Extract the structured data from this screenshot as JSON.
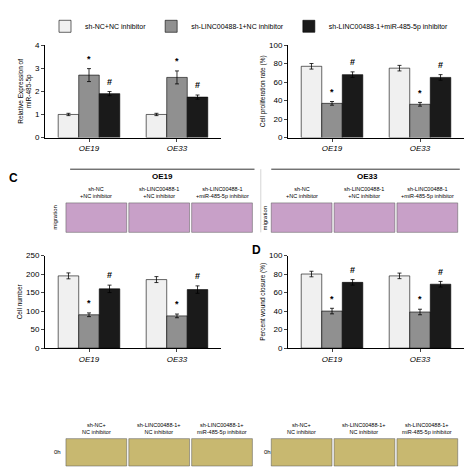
{
  "chart_data": [
    {
      "type": "bar",
      "ylabel": "Relative Expression of\nmiR-485-5p",
      "categories": [
        "OE19",
        "OE33"
      ],
      "series": [
        {
          "name": "sh-NC+NC inhibitor",
          "color": "#f0f0f0",
          "values": [
            1.0,
            1.0
          ],
          "errors": [
            0.05,
            0.05
          ]
        },
        {
          "name": "sh-LINC00488-1+NC inhibitor",
          "color": "#909090",
          "values": [
            2.7,
            2.6
          ],
          "errors": [
            0.28,
            0.28
          ]
        },
        {
          "name": "sh-LINC00488-1+miR-485-5p inhibitor",
          "color": "#1a1a1a",
          "values": [
            1.9,
            1.75
          ],
          "errors": [
            0.09,
            0.09
          ]
        }
      ],
      "ylim": [
        0,
        4
      ],
      "yticks": [
        0,
        1,
        2,
        3,
        4
      ],
      "grid": false,
      "legend": "top",
      "annotations": [
        {
          "text": "*",
          "category": "OE19",
          "series": "sh-LINC00488-1+NC inhibitor"
        },
        {
          "text": "*",
          "category": "OE33",
          "series": "sh-LINC00488-1+NC inhibitor"
        },
        {
          "text": "#",
          "category": "OE19",
          "series": "sh-LINC00488-1+miR-485-5p inhibitor"
        },
        {
          "text": "#",
          "category": "OE33",
          "series": "sh-LINC00488-1+miR-485-5p inhibitor"
        }
      ]
    },
    {
      "type": "bar",
      "ylabel": "Cell proliferation rate (%)",
      "categories": [
        "OE19",
        "OE33"
      ],
      "series": [
        {
          "name": "sh-NC+NC inhibitor",
          "color": "#f0f0f0",
          "values": [
            77,
            75
          ],
          "errors": [
            3,
            3
          ]
        },
        {
          "name": "sh-LINC00488-1+NC inhibitor",
          "color": "#909090",
          "values": [
            37,
            36
          ],
          "errors": [
            2,
            2
          ]
        },
        {
          "name": "sh-LINC00488-1+miR-485-5p inhibitor",
          "color": "#1a1a1a",
          "values": [
            68,
            65
          ],
          "errors": [
            3,
            3
          ]
        }
      ],
      "ylim": [
        0,
        100
      ],
      "yticks": [
        0,
        20,
        40,
        60,
        80,
        100
      ],
      "grid": false,
      "legend": "top",
      "annotations": [
        {
          "text": "*",
          "category": "OE19",
          "series": "sh-LINC00488-1+NC inhibitor"
        },
        {
          "text": "*",
          "category": "OE33",
          "series": "sh-LINC00488-1+NC inhibitor"
        },
        {
          "text": "#",
          "category": "OE19",
          "series": "sh-LINC00488-1+miR-485-5p inhibitor"
        },
        {
          "text": "#",
          "category": "OE33",
          "series": "sh-LINC00488-1+miR-485-5p inhibitor"
        }
      ]
    },
    {
      "type": "images",
      "title": "C",
      "color": "#c8a0c8",
      "categories": [
        "OE19",
        "OE33"
      ],
      "annotations": [
        {
          "text": "sh-NC\n+NC inhibitor",
          "group": 0,
          "box": 0
        },
        {
          "text": "sh-LINC00488-1\n+NC inhibitor",
          "group": 0,
          "box": 1
        },
        {
          "text": "sh-LINC00488-1\n+miR-485-5p inhibitor",
          "group": 0,
          "box": 2
        },
        {
          "text": "sh-NC\n+NC inhibitor",
          "group": 1,
          "box": 0
        },
        {
          "text": "sh-LINC00488-1\n+NC inhibitor",
          "group": 1,
          "box": 1
        },
        {
          "text": "sh-LINC00488-1\n+miR-485-5p inhibitor",
          "group": 1,
          "box": 2
        },
        {
          "text": "migration",
          "group": 0
        },
        {
          "text": "migration",
          "group": 1
        }
      ]
    },
    {
      "type": "bar",
      "ylabel": "Cell number",
      "categories": [
        "OE19",
        "OE33"
      ],
      "series": [
        {
          "name": "sh-NC+NC inhibitor",
          "color": "#f0f0f0",
          "values": [
            195,
            185
          ],
          "errors": [
            8,
            8
          ]
        },
        {
          "name": "sh-LINC00488-1+NC inhibitor",
          "color": "#909090",
          "values": [
            90,
            87
          ],
          "errors": [
            5,
            5
          ]
        },
        {
          "name": "sh-LINC00488-1+miR-485-5p inhibitor",
          "color": "#1a1a1a",
          "values": [
            160,
            158
          ],
          "errors": [
            10,
            10
          ]
        }
      ],
      "ylim": [
        0,
        250
      ],
      "yticks": [
        0,
        50,
        100,
        150,
        200,
        250
      ],
      "grid": false,
      "legend": "top",
      "annotations": [
        {
          "text": "*",
          "category": "OE19",
          "series": "sh-LINC00488-1+NC inhibitor"
        },
        {
          "text": "*",
          "category": "OE33",
          "series": "sh-LINC00488-1+NC inhibitor"
        },
        {
          "text": "#",
          "category": "OE19",
          "series": "sh-LINC00488-1+miR-485-5p inhibitor"
        },
        {
          "text": "#",
          "category": "OE33",
          "series": "sh-LINC00488-1+miR-485-5p inhibitor"
        }
      ]
    },
    {
      "type": "bar",
      "title": "D",
      "ylabel": "Percent wound closure (%)",
      "categories": [
        "OE19",
        "OE33"
      ],
      "series": [
        {
          "name": "sh-NC+NC inhibitor",
          "color": "#f0f0f0",
          "values": [
            80,
            78
          ],
          "errors": [
            3,
            3
          ]
        },
        {
          "name": "sh-LINC00488-1+NC inhibitor",
          "color": "#909090",
          "values": [
            40,
            39
          ],
          "errors": [
            3,
            3
          ]
        },
        {
          "name": "sh-LINC00488-1+miR-485-5p inhibitor",
          "color": "#1a1a1a",
          "values": [
            71,
            69
          ],
          "errors": [
            3,
            3
          ]
        }
      ],
      "ylim": [
        0,
        100
      ],
      "yticks": [
        0,
        20,
        40,
        60,
        80,
        100
      ],
      "grid": false,
      "legend": "top",
      "annotations": [
        {
          "text": "*",
          "category": "OE19",
          "series": "sh-LINC00488-1+NC inhibitor"
        },
        {
          "text": "*",
          "category": "OE33",
          "series": "sh-LINC00488-1+NC inhibitor"
        },
        {
          "text": "#",
          "category": "OE19",
          "series": "sh-LINC00488-1+miR-485-5p inhibitor"
        },
        {
          "text": "#",
          "category": "OE33",
          "series": "sh-LINC00488-1+miR-485-5p inhibitor"
        }
      ]
    },
    {
      "type": "images",
      "color": "#c8b870",
      "annotations": [
        {
          "text": "sh-NC+\nNC inhibitor",
          "group": 0,
          "box": 0
        },
        {
          "text": "sh-LINC00488-1+\nNC inhibitor",
          "group": 0,
          "box": 1
        },
        {
          "text": "sh-LINC00488-1+\nmiR-485-5p inhibitor",
          "group": 0,
          "box": 2
        },
        {
          "text": "sh-NC+\nNC inhibitor",
          "group": 1,
          "box": 0
        },
        {
          "text": "sh-LINC00488-1+\nNC inhibitor",
          "group": 1,
          "box": 1
        },
        {
          "text": "sh-LINC00488-1+\nmiR-485-5p inhibitor",
          "group": 1,
          "box": 2
        },
        {
          "text": "0h",
          "group": 0
        },
        {
          "text": "0h",
          "group": 1
        }
      ]
    }
  ]
}
